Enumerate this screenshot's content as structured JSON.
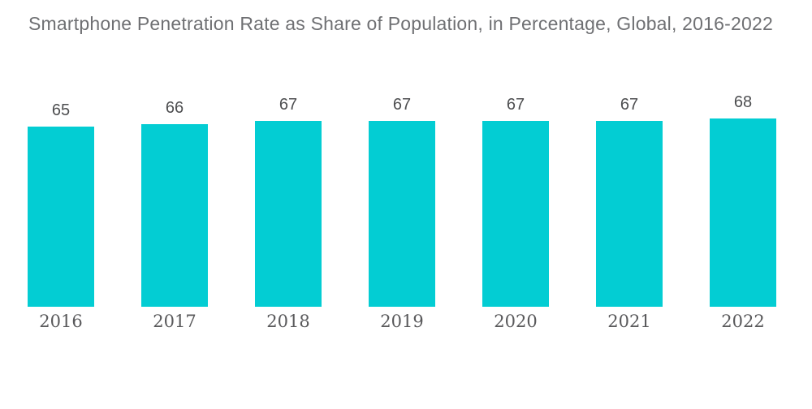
{
  "title": "Smartphone Penetration Rate as Share of Population, in Percentage, Global, 2016-2022",
  "colors": {
    "bar": "#03cdd3",
    "title_text": "#6f7073",
    "value_text": "#4d4e50",
    "year_text": "#59595b",
    "background": "#ffffff"
  },
  "chart_data": {
    "type": "bar",
    "title": "Smartphone Penetration Rate as Share of Population, in Percentage, Global, 2016-2022",
    "categories": [
      "2016",
      "2017",
      "2018",
      "2019",
      "2020",
      "2021",
      "2022"
    ],
    "values": [
      65,
      66,
      67,
      67,
      67,
      67,
      68
    ],
    "xlabel": "",
    "ylabel": "",
    "ylim": [
      0,
      75
    ],
    "grid": false,
    "legend": false,
    "value_labels_shown": true,
    "axis_lines_shown": false
  }
}
